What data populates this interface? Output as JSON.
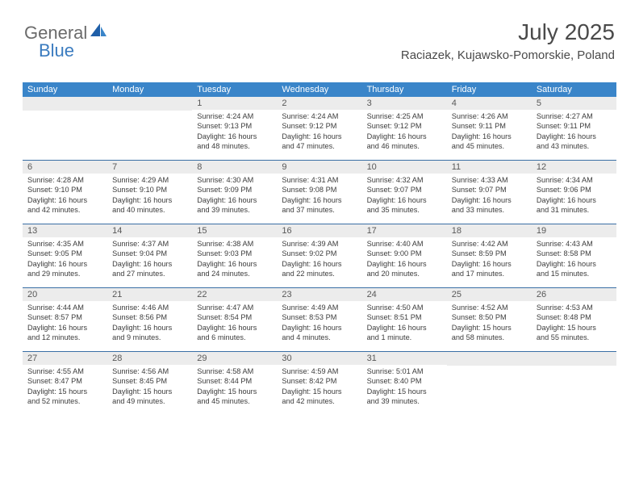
{
  "logo": {
    "part1": "General",
    "part2": "Blue"
  },
  "title": "July 2025",
  "subtitle": "Raciazek, Kujawsko-Pomorskie, Poland",
  "colors": {
    "header_bg": "#3a85c9",
    "header_text": "#ffffff",
    "daynum_bg": "#ececec",
    "week_border": "#3a6fa5",
    "logo_gray": "#6b6b6b",
    "logo_blue": "#3a7bbf",
    "text": "#333333"
  },
  "day_names": [
    "Sunday",
    "Monday",
    "Tuesday",
    "Wednesday",
    "Thursday",
    "Friday",
    "Saturday"
  ],
  "weeks": [
    [
      {
        "n": "",
        "lines": []
      },
      {
        "n": "",
        "lines": []
      },
      {
        "n": "1",
        "lines": [
          "Sunrise: 4:24 AM",
          "Sunset: 9:13 PM",
          "Daylight: 16 hours",
          "and 48 minutes."
        ]
      },
      {
        "n": "2",
        "lines": [
          "Sunrise: 4:24 AM",
          "Sunset: 9:12 PM",
          "Daylight: 16 hours",
          "and 47 minutes."
        ]
      },
      {
        "n": "3",
        "lines": [
          "Sunrise: 4:25 AM",
          "Sunset: 9:12 PM",
          "Daylight: 16 hours",
          "and 46 minutes."
        ]
      },
      {
        "n": "4",
        "lines": [
          "Sunrise: 4:26 AM",
          "Sunset: 9:11 PM",
          "Daylight: 16 hours",
          "and 45 minutes."
        ]
      },
      {
        "n": "5",
        "lines": [
          "Sunrise: 4:27 AM",
          "Sunset: 9:11 PM",
          "Daylight: 16 hours",
          "and 43 minutes."
        ]
      }
    ],
    [
      {
        "n": "6",
        "lines": [
          "Sunrise: 4:28 AM",
          "Sunset: 9:10 PM",
          "Daylight: 16 hours",
          "and 42 minutes."
        ]
      },
      {
        "n": "7",
        "lines": [
          "Sunrise: 4:29 AM",
          "Sunset: 9:10 PM",
          "Daylight: 16 hours",
          "and 40 minutes."
        ]
      },
      {
        "n": "8",
        "lines": [
          "Sunrise: 4:30 AM",
          "Sunset: 9:09 PM",
          "Daylight: 16 hours",
          "and 39 minutes."
        ]
      },
      {
        "n": "9",
        "lines": [
          "Sunrise: 4:31 AM",
          "Sunset: 9:08 PM",
          "Daylight: 16 hours",
          "and 37 minutes."
        ]
      },
      {
        "n": "10",
        "lines": [
          "Sunrise: 4:32 AM",
          "Sunset: 9:07 PM",
          "Daylight: 16 hours",
          "and 35 minutes."
        ]
      },
      {
        "n": "11",
        "lines": [
          "Sunrise: 4:33 AM",
          "Sunset: 9:07 PM",
          "Daylight: 16 hours",
          "and 33 minutes."
        ]
      },
      {
        "n": "12",
        "lines": [
          "Sunrise: 4:34 AM",
          "Sunset: 9:06 PM",
          "Daylight: 16 hours",
          "and 31 minutes."
        ]
      }
    ],
    [
      {
        "n": "13",
        "lines": [
          "Sunrise: 4:35 AM",
          "Sunset: 9:05 PM",
          "Daylight: 16 hours",
          "and 29 minutes."
        ]
      },
      {
        "n": "14",
        "lines": [
          "Sunrise: 4:37 AM",
          "Sunset: 9:04 PM",
          "Daylight: 16 hours",
          "and 27 minutes."
        ]
      },
      {
        "n": "15",
        "lines": [
          "Sunrise: 4:38 AM",
          "Sunset: 9:03 PM",
          "Daylight: 16 hours",
          "and 24 minutes."
        ]
      },
      {
        "n": "16",
        "lines": [
          "Sunrise: 4:39 AM",
          "Sunset: 9:02 PM",
          "Daylight: 16 hours",
          "and 22 minutes."
        ]
      },
      {
        "n": "17",
        "lines": [
          "Sunrise: 4:40 AM",
          "Sunset: 9:00 PM",
          "Daylight: 16 hours",
          "and 20 minutes."
        ]
      },
      {
        "n": "18",
        "lines": [
          "Sunrise: 4:42 AM",
          "Sunset: 8:59 PM",
          "Daylight: 16 hours",
          "and 17 minutes."
        ]
      },
      {
        "n": "19",
        "lines": [
          "Sunrise: 4:43 AM",
          "Sunset: 8:58 PM",
          "Daylight: 16 hours",
          "and 15 minutes."
        ]
      }
    ],
    [
      {
        "n": "20",
        "lines": [
          "Sunrise: 4:44 AM",
          "Sunset: 8:57 PM",
          "Daylight: 16 hours",
          "and 12 minutes."
        ]
      },
      {
        "n": "21",
        "lines": [
          "Sunrise: 4:46 AM",
          "Sunset: 8:56 PM",
          "Daylight: 16 hours",
          "and 9 minutes."
        ]
      },
      {
        "n": "22",
        "lines": [
          "Sunrise: 4:47 AM",
          "Sunset: 8:54 PM",
          "Daylight: 16 hours",
          "and 6 minutes."
        ]
      },
      {
        "n": "23",
        "lines": [
          "Sunrise: 4:49 AM",
          "Sunset: 8:53 PM",
          "Daylight: 16 hours",
          "and 4 minutes."
        ]
      },
      {
        "n": "24",
        "lines": [
          "Sunrise: 4:50 AM",
          "Sunset: 8:51 PM",
          "Daylight: 16 hours",
          "and 1 minute."
        ]
      },
      {
        "n": "25",
        "lines": [
          "Sunrise: 4:52 AM",
          "Sunset: 8:50 PM",
          "Daylight: 15 hours",
          "and 58 minutes."
        ]
      },
      {
        "n": "26",
        "lines": [
          "Sunrise: 4:53 AM",
          "Sunset: 8:48 PM",
          "Daylight: 15 hours",
          "and 55 minutes."
        ]
      }
    ],
    [
      {
        "n": "27",
        "lines": [
          "Sunrise: 4:55 AM",
          "Sunset: 8:47 PM",
          "Daylight: 15 hours",
          "and 52 minutes."
        ]
      },
      {
        "n": "28",
        "lines": [
          "Sunrise: 4:56 AM",
          "Sunset: 8:45 PM",
          "Daylight: 15 hours",
          "and 49 minutes."
        ]
      },
      {
        "n": "29",
        "lines": [
          "Sunrise: 4:58 AM",
          "Sunset: 8:44 PM",
          "Daylight: 15 hours",
          "and 45 minutes."
        ]
      },
      {
        "n": "30",
        "lines": [
          "Sunrise: 4:59 AM",
          "Sunset: 8:42 PM",
          "Daylight: 15 hours",
          "and 42 minutes."
        ]
      },
      {
        "n": "31",
        "lines": [
          "Sunrise: 5:01 AM",
          "Sunset: 8:40 PM",
          "Daylight: 15 hours",
          "and 39 minutes."
        ]
      },
      {
        "n": "",
        "lines": []
      },
      {
        "n": "",
        "lines": []
      }
    ]
  ]
}
